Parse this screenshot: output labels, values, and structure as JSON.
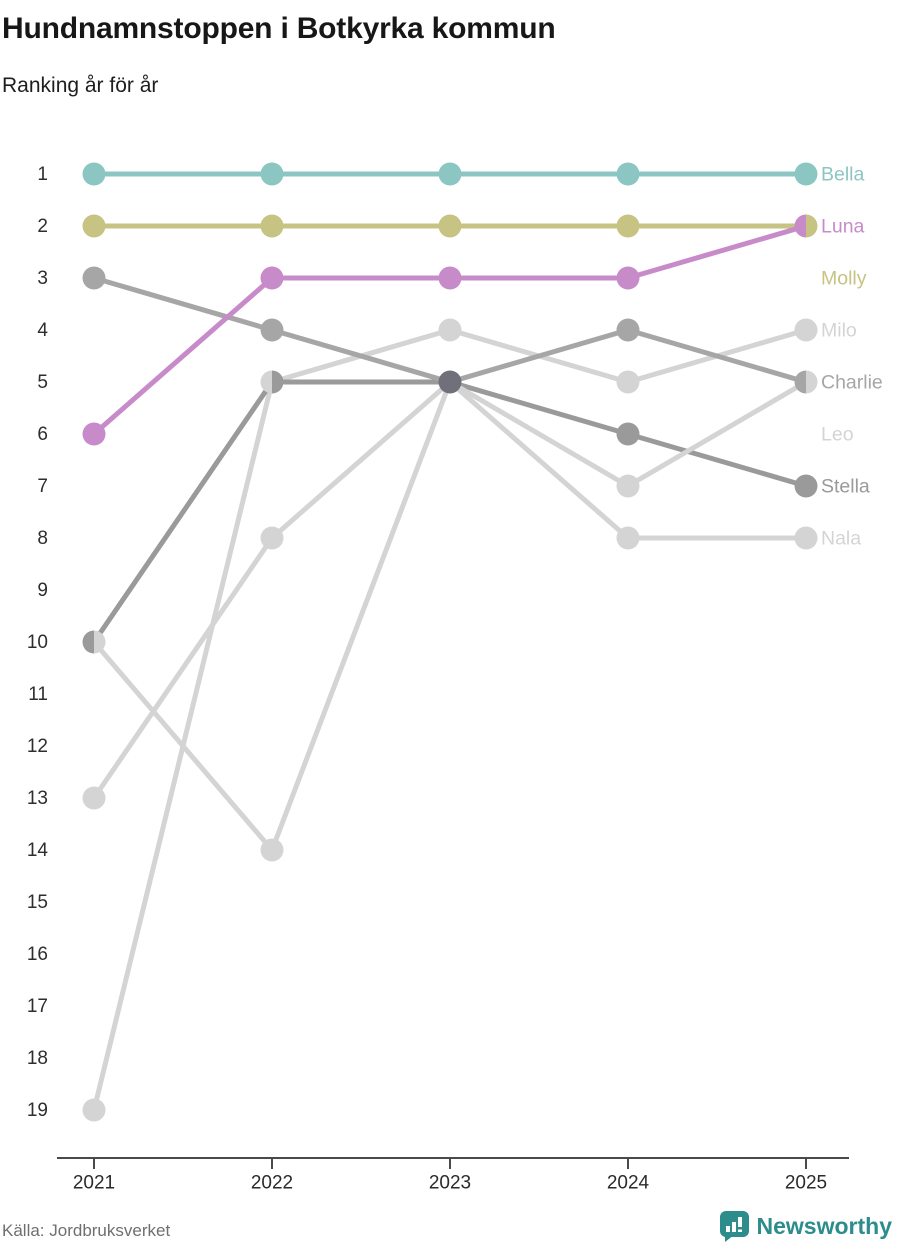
{
  "title": "Hundnamnstoppen i Botkyrka kommun",
  "subtitle": "Ranking år för år",
  "source": "Källa: Jordbruksverket",
  "brand": {
    "name": "Newsworthy",
    "color": "#2d8c8c"
  },
  "chart_data": {
    "type": "line",
    "variant": "bump-ranking",
    "title": "Hundnamnstoppen i Botkyrka kommun",
    "xlabel": "",
    "ylabel": "",
    "x": [
      "2021",
      "2022",
      "2023",
      "2024",
      "2025"
    ],
    "rank_ticks": [
      1,
      2,
      3,
      4,
      5,
      6,
      7,
      8,
      9,
      10,
      11,
      12,
      13,
      14,
      15,
      16,
      17,
      18,
      19
    ],
    "ylim": [
      1,
      19
    ],
    "y_axis_inverted": true,
    "grid": false,
    "legend_position": "right-of-last-point",
    "series": [
      {
        "name": "Bella",
        "color": "#8bc6c3",
        "values": [
          1,
          1,
          1,
          1,
          1
        ],
        "label_slot": 1
      },
      {
        "name": "Luna",
        "color": "#c78bc9",
        "values": [
          6,
          3,
          3,
          3,
          2
        ],
        "label_slot": 2
      },
      {
        "name": "Molly",
        "color": "#c6c383",
        "values": [
          2,
          2,
          2,
          2,
          2
        ],
        "label_slot": 3
      },
      {
        "name": "Milo",
        "color": "#d4d4d4",
        "values": [
          19,
          5,
          4,
          5,
          4
        ],
        "label_slot": 4
      },
      {
        "name": "Charlie",
        "color": "#a6a6a6",
        "values": [
          3,
          4,
          5,
          4,
          5
        ],
        "label_slot": 5
      },
      {
        "name": "Leo",
        "color": "#d4d4d4",
        "values": [
          10,
          14,
          5,
          7,
          5
        ],
        "label_slot": 6
      },
      {
        "name": "Stella",
        "color": "#9a9a9a",
        "values": [
          10,
          5,
          5,
          6,
          7
        ],
        "label_slot": 7
      },
      {
        "name": "Nala",
        "color": "#d4d4d4",
        "values": [
          13,
          8,
          5,
          8,
          8
        ],
        "label_slot": 8
      }
    ],
    "z_order": [
      "Milo",
      "Nala",
      "Stella",
      "Leo",
      "Charlie",
      "Molly",
      "Bella",
      "Luna"
    ],
    "ties": [
      {
        "year": "2021",
        "rank": 10,
        "left": "Stella",
        "right": "Leo"
      },
      {
        "year": "2022",
        "rank": 5,
        "left": "Milo",
        "right": "Stella"
      },
      {
        "year": "2023",
        "rank": 5,
        "fill": "#70707a",
        "members": [
          "Charlie",
          "Stella",
          "Leo",
          "Nala"
        ]
      },
      {
        "year": "2025",
        "rank": 2,
        "left": "Luna",
        "right": "Molly"
      },
      {
        "year": "2025",
        "rank": 5,
        "left": "Charlie",
        "right": "Leo"
      }
    ],
    "axis_color": "#4a4a4a"
  }
}
